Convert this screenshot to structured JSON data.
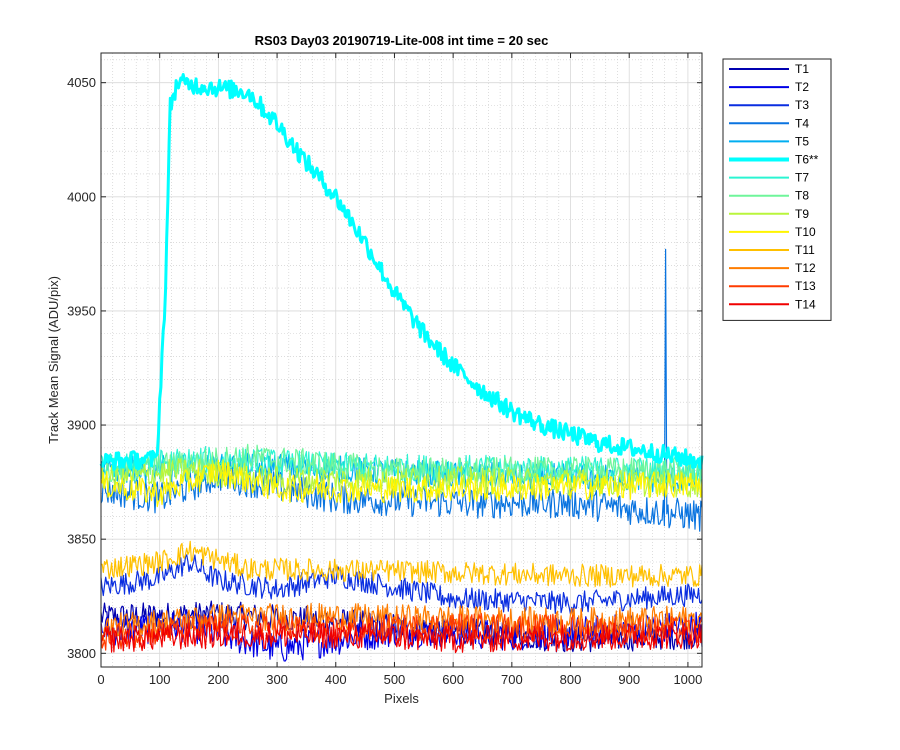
{
  "chart_data": {
    "type": "line",
    "title": "RS03 Day03 20190719-Lite-008 int time = 20 sec",
    "xlabel": "Pixels",
    "ylabel": "Track Mean Signal (ADU/pix)",
    "xlim": [
      0,
      1024
    ],
    "ylim": [
      3794,
      4063
    ],
    "xticks": [
      0,
      100,
      200,
      300,
      400,
      500,
      600,
      700,
      800,
      900,
      1000
    ],
    "yticks": [
      3800,
      3850,
      3900,
      3950,
      4000,
      4050
    ],
    "grid": true,
    "minor_grid": true,
    "legend_location": "outside-right",
    "series": [
      {
        "name": "T1",
        "color": "#0000b0",
        "highlight": false,
        "noise": 6,
        "points": [
          [
            0,
            3816
          ],
          [
            200,
            3817
          ],
          [
            400,
            3814
          ],
          [
            600,
            3810
          ],
          [
            800,
            3806
          ],
          [
            1024,
            3808
          ]
        ]
      },
      {
        "name": "T2",
        "color": "#0000e6",
        "highlight": false,
        "noise": 7,
        "points": [
          [
            0,
            3810
          ],
          [
            150,
            3812
          ],
          [
            300,
            3802
          ],
          [
            500,
            3810
          ],
          [
            700,
            3808
          ],
          [
            1024,
            3812
          ]
        ]
      },
      {
        "name": "T3",
        "color": "#0a2ee0",
        "highlight": false,
        "noise": 5,
        "points": [
          [
            0,
            3829
          ],
          [
            100,
            3833
          ],
          [
            150,
            3840
          ],
          [
            200,
            3832
          ],
          [
            300,
            3828
          ],
          [
            400,
            3834
          ],
          [
            600,
            3824
          ],
          [
            800,
            3822
          ],
          [
            1024,
            3826
          ]
        ]
      },
      {
        "name": "T4",
        "color": "#0a74e0",
        "highlight": false,
        "noise": 7,
        "points": [
          [
            0,
            3872
          ],
          [
            100,
            3868
          ],
          [
            200,
            3878
          ],
          [
            400,
            3868
          ],
          [
            600,
            3866
          ],
          [
            800,
            3866
          ],
          [
            1024,
            3860
          ]
        ],
        "spikes": [
          [
            962,
            3977
          ]
        ]
      },
      {
        "name": "T5",
        "color": "#00aef0",
        "highlight": false,
        "noise": 6,
        "points": [
          [
            0,
            3880
          ],
          [
            300,
            3882
          ],
          [
            600,
            3878
          ],
          [
            1024,
            3876
          ]
        ]
      },
      {
        "name": "T6**",
        "color": "#00ffff",
        "highlight": true,
        "noise": 4,
        "points": [
          [
            0,
            3884
          ],
          [
            95,
            3885
          ],
          [
            110,
            3960
          ],
          [
            118,
            4040
          ],
          [
            130,
            4050
          ],
          [
            250,
            4046
          ],
          [
            300,
            4032
          ],
          [
            350,
            4015
          ],
          [
            400,
            4000
          ],
          [
            450,
            3980
          ],
          [
            500,
            3958
          ],
          [
            550,
            3940
          ],
          [
            600,
            3926
          ],
          [
            650,
            3915
          ],
          [
            700,
            3906
          ],
          [
            750,
            3900
          ],
          [
            800,
            3896
          ],
          [
            850,
            3892
          ],
          [
            900,
            3890
          ],
          [
            1024,
            3884
          ]
        ]
      },
      {
        "name": "T7",
        "color": "#2af5d2",
        "highlight": false,
        "noise": 6,
        "points": [
          [
            0,
            3882
          ],
          [
            200,
            3885
          ],
          [
            400,
            3882
          ],
          [
            600,
            3881
          ],
          [
            1024,
            3880
          ]
        ]
      },
      {
        "name": "T8",
        "color": "#6ff59a",
        "highlight": false,
        "noise": 6,
        "points": [
          [
            0,
            3879
          ],
          [
            250,
            3886
          ],
          [
            500,
            3880
          ],
          [
            1024,
            3880
          ]
        ]
      },
      {
        "name": "T9",
        "color": "#b9f53c",
        "highlight": false,
        "noise": 6,
        "points": [
          [
            0,
            3876
          ],
          [
            150,
            3880
          ],
          [
            300,
            3876
          ],
          [
            600,
            3876
          ],
          [
            1024,
            3874
          ]
        ]
      },
      {
        "name": "T10",
        "color": "#fff500",
        "highlight": false,
        "noise": 6,
        "points": [
          [
            0,
            3874
          ],
          [
            100,
            3870
          ],
          [
            200,
            3880
          ],
          [
            300,
            3872
          ],
          [
            600,
            3872
          ],
          [
            1024,
            3874
          ]
        ]
      },
      {
        "name": "T11",
        "color": "#ffc000",
        "highlight": false,
        "noise": 5,
        "points": [
          [
            0,
            3837
          ],
          [
            100,
            3840
          ],
          [
            150,
            3845
          ],
          [
            250,
            3837
          ],
          [
            500,
            3836
          ],
          [
            800,
            3834
          ],
          [
            1024,
            3834
          ]
        ]
      },
      {
        "name": "T12",
        "color": "#ff7d00",
        "highlight": false,
        "noise": 6,
        "points": [
          [
            0,
            3811
          ],
          [
            200,
            3816
          ],
          [
            400,
            3816
          ],
          [
            600,
            3815
          ],
          [
            800,
            3814
          ],
          [
            1024,
            3815
          ]
        ]
      },
      {
        "name": "T13",
        "color": "#ff3b00",
        "highlight": false,
        "noise": 6,
        "points": [
          [
            0,
            3807
          ],
          [
            200,
            3812
          ],
          [
            400,
            3810
          ],
          [
            600,
            3812
          ],
          [
            1024,
            3810
          ]
        ]
      },
      {
        "name": "T14",
        "color": "#f00000",
        "highlight": false,
        "noise": 6,
        "points": [
          [
            0,
            3806
          ],
          [
            200,
            3808
          ],
          [
            400,
            3808
          ],
          [
            600,
            3806
          ],
          [
            1024,
            3808
          ]
        ]
      }
    ]
  }
}
